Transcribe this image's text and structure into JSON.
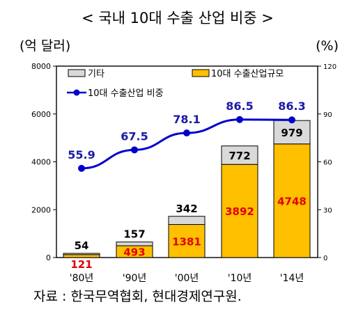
{
  "chart_data": {
    "type": "bar",
    "title": "< 국내 10대 수출 산업 비중 >",
    "left_unit": "(억 달러)",
    "right_unit": "(%)",
    "categories": [
      "'80년",
      "'90년",
      "'00년",
      "'10년",
      "'14년"
    ],
    "series": [
      {
        "name": "10대 수출산업규모",
        "kind": "bar",
        "stack": "main",
        "color": "#ffc000",
        "values": [
          121,
          493,
          1381,
          3892,
          4748
        ]
      },
      {
        "name": "기타",
        "kind": "bar",
        "stack": "main",
        "color": "#d9d9d9",
        "values": [
          54,
          157,
          342,
          772,
          979
        ]
      },
      {
        "name": "10대 수출산업 비중",
        "kind": "line",
        "axis": "right",
        "color": "#0000cc",
        "values": [
          55.9,
          67.5,
          78.1,
          86.5,
          86.3
        ]
      }
    ],
    "left_axis": {
      "min": 0,
      "max": 8000,
      "ticks": [
        "0",
        "2000",
        "4000",
        "6000",
        "8000"
      ]
    },
    "right_axis": {
      "min": 0,
      "max": 120,
      "ticks": [
        "0",
        "30",
        "60",
        "90",
        "120"
      ]
    },
    "legend": [
      "기타",
      "10대 수출산업규모",
      "10대 수출산업 비중"
    ],
    "grid": false
  },
  "source": "자료 : 한국무역협회, 현대경제연구원."
}
